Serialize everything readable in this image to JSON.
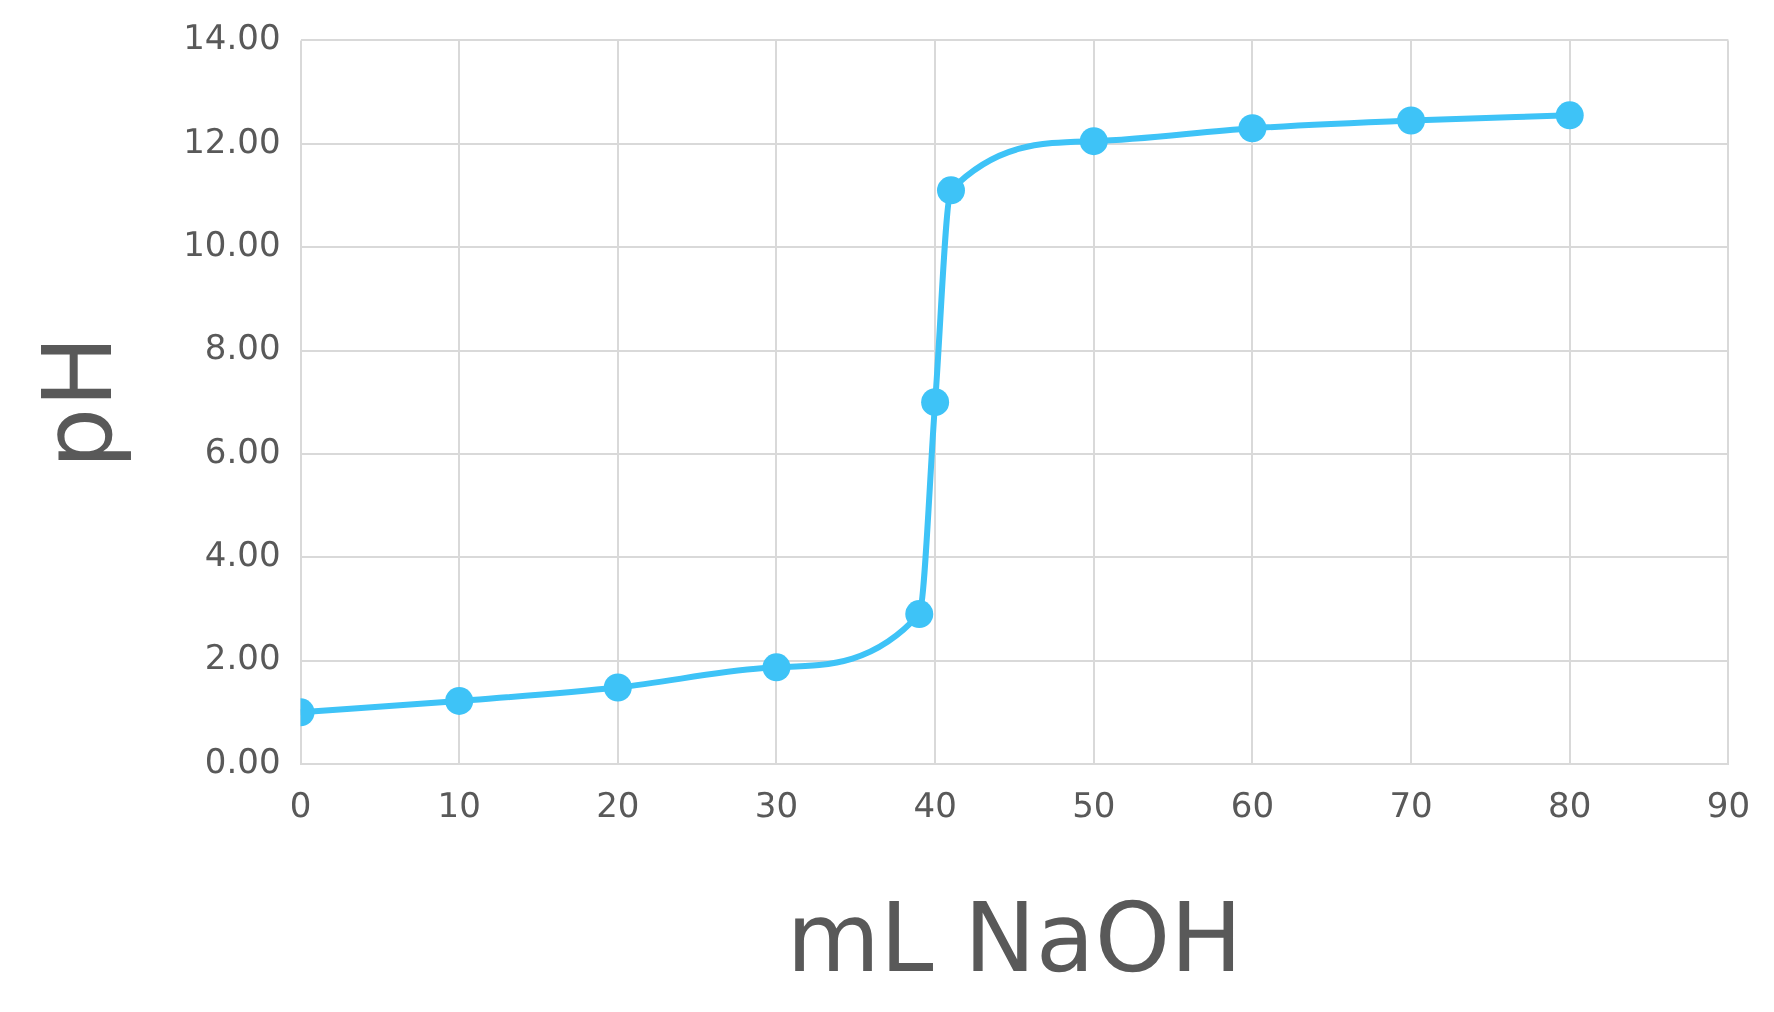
{
  "chart_data": {
    "type": "line",
    "xlabel": "mL NaOH",
    "ylabel": "pH",
    "x": [
      0,
      10,
      20,
      30,
      39,
      40,
      41,
      50,
      60,
      70,
      80
    ],
    "series": [
      {
        "color": "#3ec3f7",
        "values": [
          1.0,
          1.22,
          1.48,
          1.87,
          2.9,
          7.0,
          11.1,
          12.05,
          12.3,
          12.45,
          12.55
        ]
      }
    ],
    "xlim": [
      0,
      90
    ],
    "xticks": [
      0,
      10,
      20,
      30,
      40,
      50,
      60,
      70,
      80,
      90
    ],
    "ylim": [
      0,
      14
    ],
    "yticks": [
      {
        "value": 0,
        "label": "0.00"
      },
      {
        "value": 2,
        "label": "2.00"
      },
      {
        "value": 4,
        "label": "4.00"
      },
      {
        "value": 6,
        "label": "6.00"
      },
      {
        "value": 8,
        "label": "8.00"
      },
      {
        "value": 10,
        "label": "10.00"
      },
      {
        "value": 12,
        "label": "12.00"
      },
      {
        "value": 14,
        "label": "14.00"
      }
    ],
    "grid": true,
    "legend": false,
    "marker": "circle",
    "line_style": "solid"
  }
}
